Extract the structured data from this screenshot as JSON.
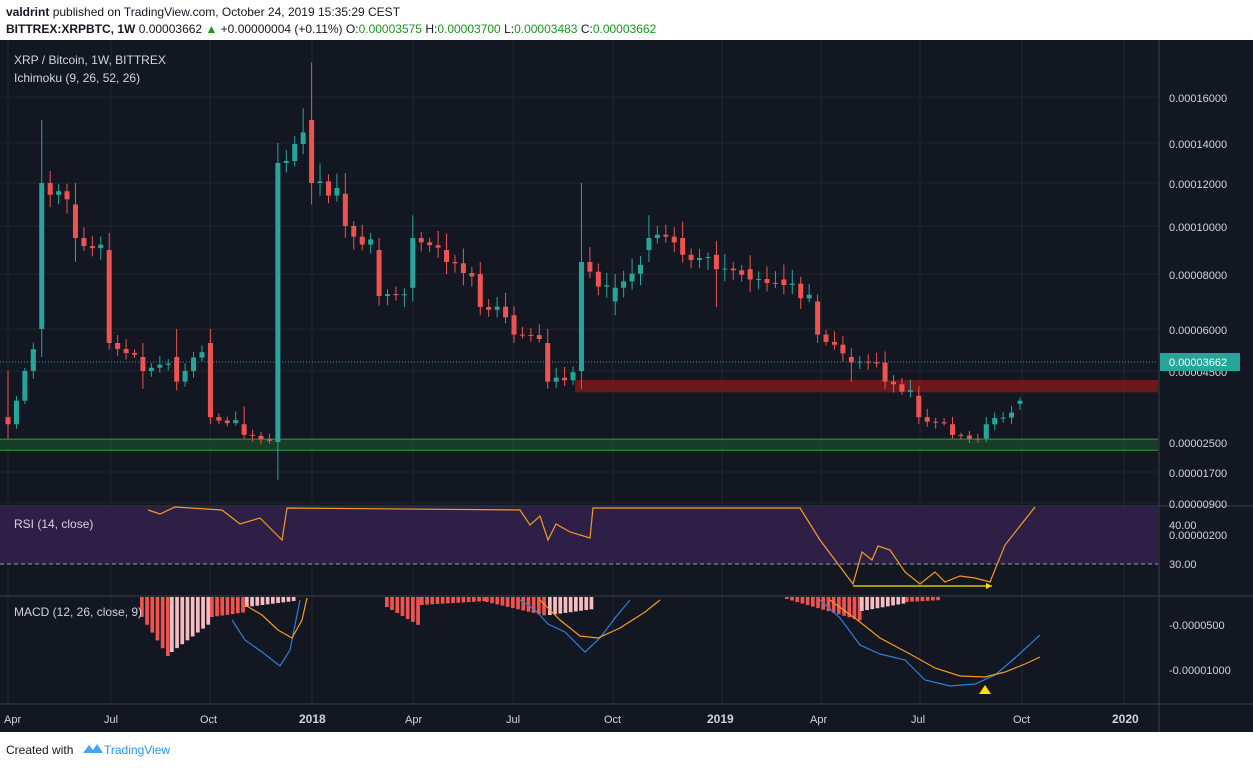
{
  "header": {
    "author": "valdrint",
    "published": "published on TradingView.com, October 24, 2019 15:35:29 CEST",
    "symbol": "BITTREX:XRPBTC, 1W",
    "last": "0.00003662",
    "change": "+0.00000004 (+0.11%)",
    "o_label": "O:",
    "o_value": "0.00003575",
    "h_label": "H:",
    "h_value": "0.00003700",
    "l_label": "L:",
    "l_value": "0.00003483",
    "c_label": "C:",
    "c_value": "0.00003662"
  },
  "legend": {
    "pair": "XRP / Bitcoin, 1W, BITTREX",
    "ichimoku": "Ichimoku (9, 26, 52, 26)",
    "rsi": "RSI (14, close)",
    "macd": "MACD (12, 26, close, 9)"
  },
  "price_axis": {
    "ticks": [
      "0.00016000",
      "0.00014000",
      "0.00012000",
      "0.00010000",
      "0.00008000",
      "0.00006000",
      "0.00004500",
      "0.00002500",
      "0.00001700",
      "0.00000900",
      "0.00000200"
    ],
    "current_label": "0.00003662"
  },
  "rsi_axis": {
    "ticks": [
      "40.00",
      "30.00"
    ]
  },
  "macd_axis": {
    "ticks": [
      "-0.0000500",
      "-0.00001000"
    ]
  },
  "time_axis": {
    "labels": [
      {
        "t": "Apr",
        "bold": false
      },
      {
        "t": "Jul",
        "bold": false
      },
      {
        "t": "Oct",
        "bold": false
      },
      {
        "t": "2018",
        "bold": true
      },
      {
        "t": "Apr",
        "bold": false
      },
      {
        "t": "Jul",
        "bold": false
      },
      {
        "t": "Oct",
        "bold": false
      },
      {
        "t": "2019",
        "bold": true
      },
      {
        "t": "Apr",
        "bold": false
      },
      {
        "t": "Jul",
        "bold": false
      },
      {
        "t": "Oct",
        "bold": false
      },
      {
        "t": "2020",
        "bold": true
      }
    ]
  },
  "colors": {
    "background": "#131722",
    "up": "#26a69a",
    "down": "#ef5350",
    "resistance_zone": "#8b1a1a",
    "support_zone": "#1e5b2a",
    "rsi_band": "#2e1f47",
    "macd_line": "#2f7fd9",
    "signal_line": "#f59b23",
    "hist_dark": "#ef5350",
    "hist_light": "#f7bcc0",
    "annotation": "#ffe100"
  },
  "chart_data": {
    "type": "candlestick",
    "symbol": "XRPBTC",
    "timeframe": "1W",
    "exchange": "BITTREX",
    "period": "2017-04 to 2019-10",
    "last_close": 3.662e-05,
    "ohlc_anchor_points": [
      {
        "date": "2017-04",
        "o": 3.2e-05,
        "h": 4.5e-05,
        "l": 2.6e-05,
        "c": 3e-05
      },
      {
        "date": "2017-05",
        "o": 6e-05,
        "h": 0.00015,
        "l": 5e-05,
        "c": 0.00012
      },
      {
        "date": "2017-06",
        "o": 0.00011,
        "h": 0.00012,
        "l": 8.5e-05,
        "c": 9.5e-05
      },
      {
        "date": "2017-07",
        "o": 9e-05,
        "h": 9.5e-05,
        "l": 6e-05,
        "c": 5.5e-05
      },
      {
        "date": "2017-08",
        "o": 5e-05,
        "h": 5.5e-05,
        "l": 4e-05,
        "c": 4.5e-05
      },
      {
        "date": "2017-09",
        "o": 5e-05,
        "h": 6e-05,
        "l": 4e-05,
        "c": 4.2e-05
      },
      {
        "date": "2017-10",
        "o": 5.5e-05,
        "h": 6e-05,
        "l": 3e-05,
        "c": 3.2e-05
      },
      {
        "date": "2017-11",
        "o": 3e-05,
        "h": 3.5e-05,
        "l": 2.6e-05,
        "c": 2.7e-05
      },
      {
        "date": "2017-12",
        "o": 2.5e-05,
        "h": 0.00014,
        "l": 1.5e-05,
        "c": 0.00013
      },
      {
        "date": "2018-01",
        "o": 0.00015,
        "h": 0.000175,
        "l": 0.00011,
        "c": 0.00012
      },
      {
        "date": "2018-02",
        "o": 0.000115,
        "h": 0.000125,
        "l": 9.5e-05,
        "c": 0.0001
      },
      {
        "date": "2018-03",
        "o": 9e-05,
        "h": 9.5e-05,
        "l": 7e-05,
        "c": 7.2e-05
      },
      {
        "date": "2018-04",
        "o": 7.5e-05,
        "h": 0.000105,
        "l": 7e-05,
        "c": 9.5e-05
      },
      {
        "date": "2018-05",
        "o": 9e-05,
        "h": 9.5e-05,
        "l": 8e-05,
        "c": 8.5e-05
      },
      {
        "date": "2018-06",
        "o": 8e-05,
        "h": 8.5e-05,
        "l": 6.5e-05,
        "c": 6.8e-05
      },
      {
        "date": "2018-07",
        "o": 6.5e-05,
        "h": 6.8e-05,
        "l": 5.5e-05,
        "c": 5.8e-05
      },
      {
        "date": "2018-08",
        "o": 5.5e-05,
        "h": 6e-05,
        "l": 4e-05,
        "c": 4.2e-05
      },
      {
        "date": "2018-09",
        "o": 4.5e-05,
        "h": 0.00012,
        "l": 4e-05,
        "c": 8.5e-05
      },
      {
        "date": "2018-10",
        "o": 7e-05,
        "h": 8e-05,
        "l": 6.5e-05,
        "c": 7.5e-05
      },
      {
        "date": "2018-11",
        "o": 9e-05,
        "h": 0.000105,
        "l": 8.5e-05,
        "c": 9.5e-05
      },
      {
        "date": "2018-12",
        "o": 9.5e-05,
        "h": 9.8e-05,
        "l": 8.5e-05,
        "c": 8.8e-05
      },
      {
        "date": "2019-01",
        "o": 8.8e-05,
        "h": 9.2e-05,
        "l": 6.8e-05,
        "c": 8.2e-05
      },
      {
        "date": "2019-02",
        "o": 8.2e-05,
        "h": 8.5e-05,
        "l": 7.5e-05,
        "c": 7.8e-05
      },
      {
        "date": "2019-03",
        "o": 7.8e-05,
        "h": 8e-05,
        "l": 7.4e-05,
        "c": 7.6e-05
      },
      {
        "date": "2019-04",
        "o": 7e-05,
        "h": 7.2e-05,
        "l": 5.5e-05,
        "c": 5.8e-05
      },
      {
        "date": "2019-05",
        "o": 5e-05,
        "h": 5.2e-05,
        "l": 4.2e-05,
        "c": 4.8e-05
      },
      {
        "date": "2019-06",
        "o": 4.8e-05,
        "h": 5.2e-05,
        "l": 4e-05,
        "c": 4.2e-05
      },
      {
        "date": "2019-07",
        "o": 3.8e-05,
        "h": 4e-05,
        "l": 3e-05,
        "c": 3.2e-05
      },
      {
        "date": "2019-08",
        "o": 3e-05,
        "h": 3.2e-05,
        "l": 2.6e-05,
        "c": 2.7e-05
      },
      {
        "date": "2019-09",
        "o": 2.6e-05,
        "h": 3.2e-05,
        "l": 2.5e-05,
        "c": 3e-05
      },
      {
        "date": "2019-10",
        "o": 3.575e-05,
        "h": 3.7e-05,
        "l": 3.483e-05,
        "c": 3.662e-05
      }
    ],
    "zones": [
      {
        "type": "resistance",
        "low": 3.9e-05,
        "high": 4.25e-05
      },
      {
        "type": "support",
        "low": 2.28e-05,
        "high": 2.58e-05
      }
    ],
    "rsi": {
      "period": 14,
      "levels": [
        40,
        30
      ]
    },
    "macd": {
      "fast": 12,
      "slow": 26,
      "signal": 9
    }
  }
}
